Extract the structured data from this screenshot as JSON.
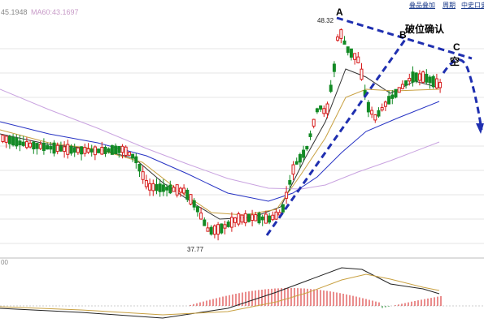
{
  "header": {
    "ma_readout_left": "45.1948",
    "ma_readout_right": "MA60:43.1697",
    "toolbar": [
      "叠品叠加",
      "周期",
      "中史口史"
    ]
  },
  "annotations": {
    "point_a": "A",
    "point_b": "B",
    "point_c": "C",
    "breakout_confirm": "破位确认",
    "short_label": "空"
  },
  "price_labels": {
    "high": "48.32",
    "low": "37.77"
  },
  "indicator": {
    "scale_label": "00"
  },
  "colors": {
    "up": "#d61b1b",
    "down": "#138a25",
    "trendline": "#1f2fb0",
    "ma_short": "#333333",
    "ma_mid": "#c8a040",
    "ma_long": "#2733c4",
    "ma_longest": "#c9a3e0",
    "gridline": "#e5e5e5"
  }
}
